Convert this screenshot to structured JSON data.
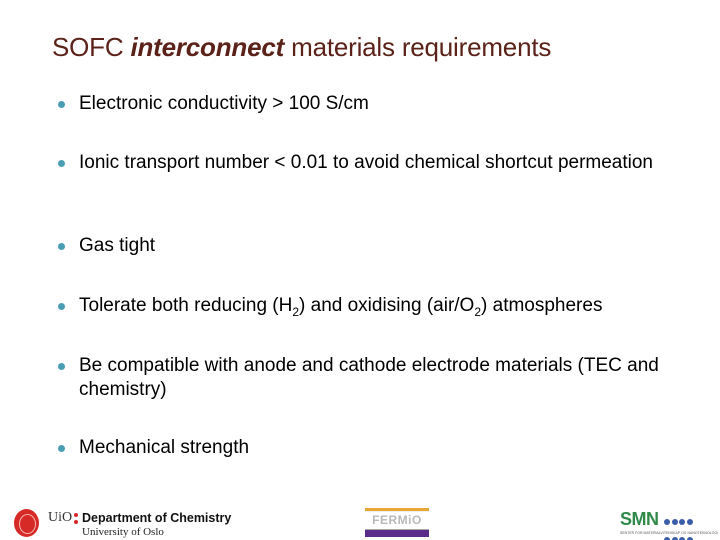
{
  "title": {
    "prefix": "SOFC ",
    "emphasis": "interconnect",
    "suffix": " materials requirements"
  },
  "colors": {
    "title": "#5a2218",
    "bullet": "#4b9db3"
  },
  "bullets": [
    {
      "text": "Electronic conductivity > 100 S/cm"
    },
    {
      "text": "Ionic transport number < 0.01 to avoid chemical shortcut permeation"
    },
    {
      "text": "Gas tight"
    },
    {
      "parts": [
        "Tolerate both reducing (H",
        "2",
        ") and oxidising (air/O",
        "2",
        ") atmospheres"
      ]
    },
    {
      "text": "Be compatible with anode and cathode electrode materials (TEC and chemistry)"
    },
    {
      "text": "Mechanical strength"
    }
  ],
  "footer": {
    "uio_logo": {
      "mark": "UiO",
      "department": "Department of Chemistry",
      "university": "University of Oslo"
    },
    "fermio_logo": {
      "text": "FERMiO"
    },
    "smn_logo": {
      "text": "SMN",
      "subtitle": "SENTER FOR MATERIALVITENSKAP OG NANOTEKNOLOGI"
    }
  }
}
